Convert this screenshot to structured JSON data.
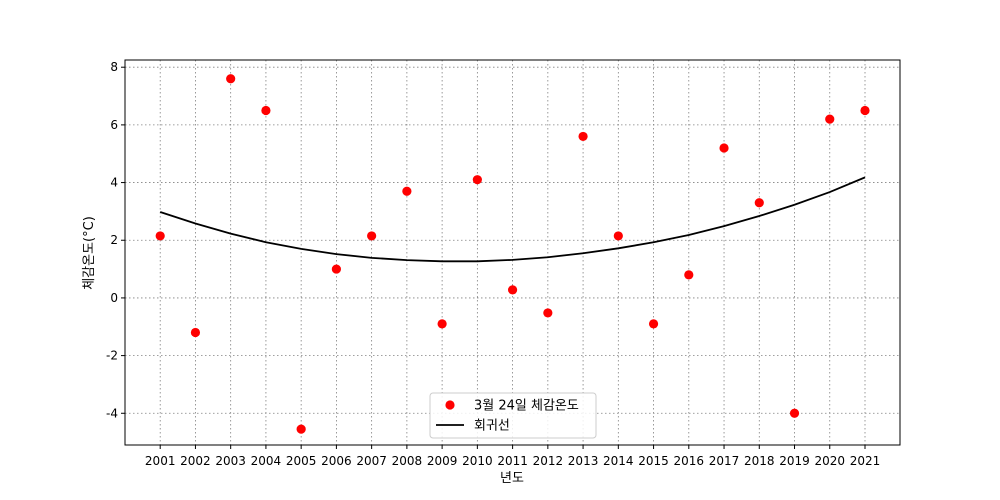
{
  "chart_data": {
    "type": "scatter",
    "xlabel": "년도",
    "ylabel": "체감온도(°C)",
    "ylim": [
      -5.1,
      8.25
    ],
    "yticks": [
      -4,
      -2,
      0,
      2,
      4,
      6,
      8
    ],
    "ytick_labels": [
      "-4",
      "-2",
      "0",
      "2",
      "4",
      "6",
      "8"
    ],
    "grid": true,
    "legend_position": "bottom-center",
    "categories": [
      "2001",
      "2002",
      "2003",
      "2004",
      "2005",
      "2006",
      "2007",
      "2008",
      "2009",
      "2010",
      "2011",
      "2012",
      "2013",
      "2014",
      "2015",
      "2016",
      "2017",
      "2018",
      "2019",
      "2020",
      "2021"
    ],
    "series": [
      {
        "name": "3월 24일 체감온도",
        "kind": "scatter",
        "color": "#ff0000",
        "values": [
          2.15,
          -1.2,
          7.6,
          6.5,
          -4.55,
          1.0,
          2.15,
          3.7,
          -0.9,
          4.1,
          0.28,
          -0.52,
          5.6,
          2.15,
          -0.9,
          0.8,
          5.2,
          3.3,
          -4.0,
          6.2,
          6.5
        ]
      },
      {
        "name": "회귀선",
        "kind": "line",
        "color": "#000000",
        "values": [
          2.98,
          2.58,
          2.23,
          1.93,
          1.7,
          1.52,
          1.39,
          1.31,
          1.27,
          1.27,
          1.32,
          1.41,
          1.55,
          1.72,
          1.93,
          2.18,
          2.49,
          2.84,
          3.23,
          3.67,
          4.18
        ]
      }
    ]
  }
}
